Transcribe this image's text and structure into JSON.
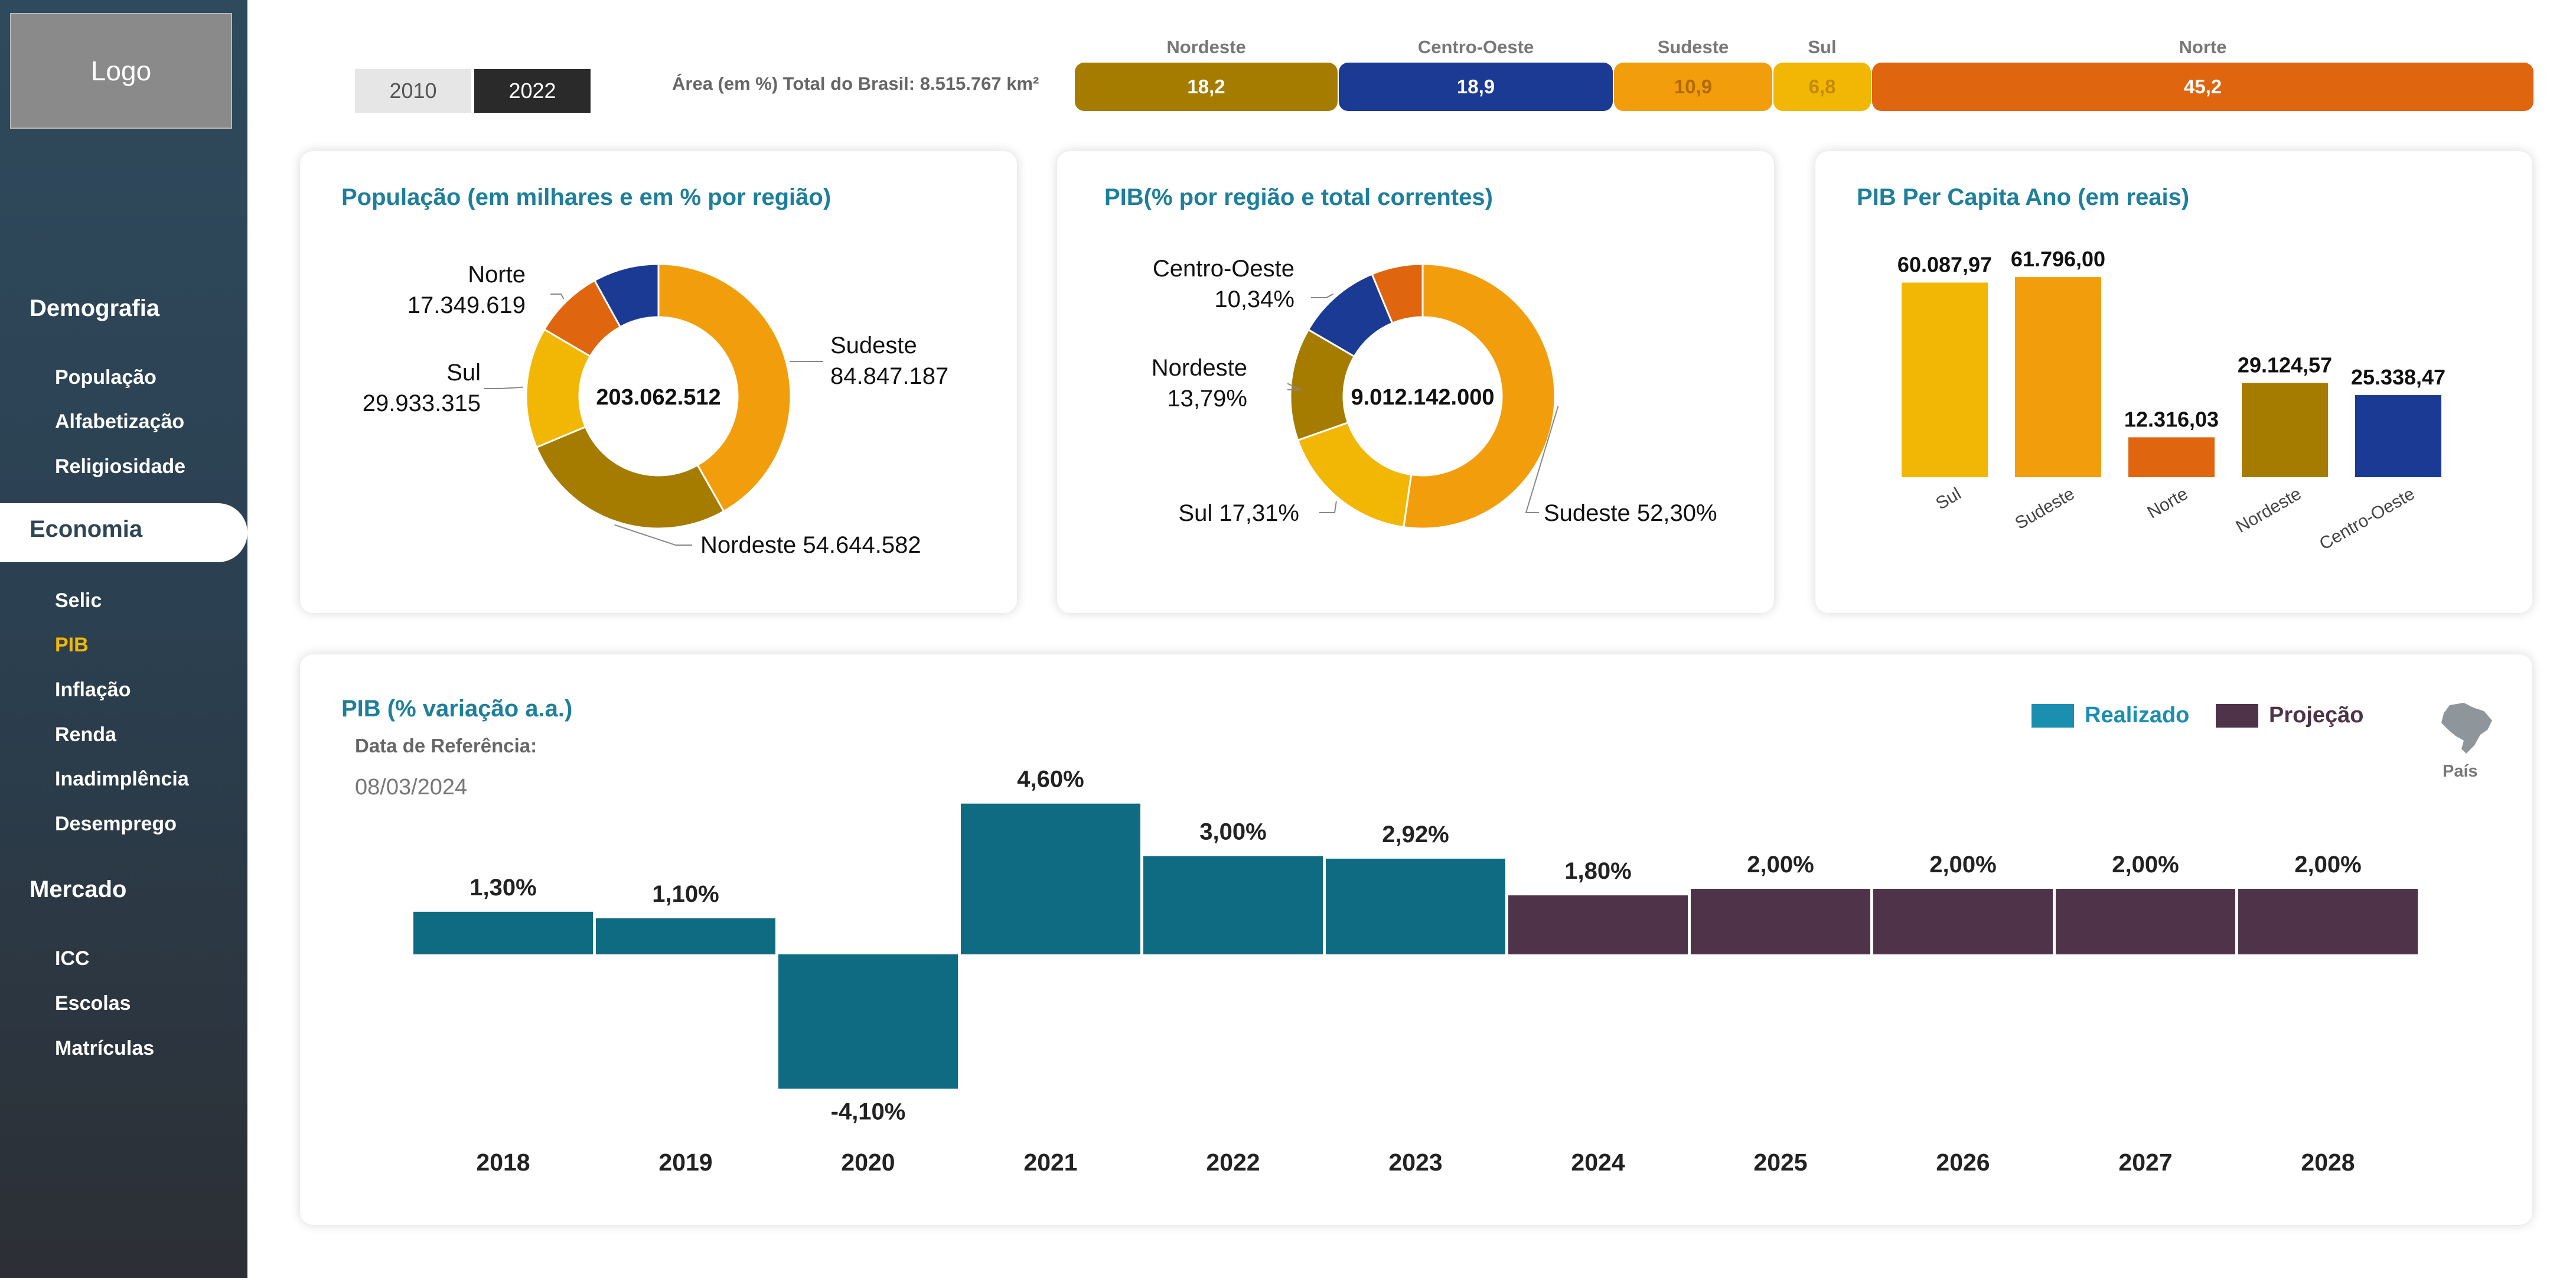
{
  "logo": "Logo",
  "sidebar": {
    "sections": [
      {
        "title": "Demografia",
        "items": [
          "População",
          "Alfabetização",
          "Religiosidade"
        ]
      },
      {
        "title": "Economia",
        "items": [
          "Selic",
          "PIB",
          "Inflação",
          "Renda",
          "Inadimplência",
          "Desemprego"
        ]
      },
      {
        "title": "Mercado",
        "items": [
          "ICC",
          "Escolas",
          "Matrículas"
        ]
      }
    ],
    "active_section": "Economia",
    "active_item": "PIB"
  },
  "years": [
    "2010",
    "2022"
  ],
  "selected_year": "2022",
  "area": {
    "label": "Área (em %) Total do Brasil: 8.515.767 km²",
    "regions": [
      {
        "name": "Nordeste",
        "value": "18,2"
      },
      {
        "name": "Centro-Oeste",
        "value": "18,9"
      },
      {
        "name": "Sudeste",
        "value": "10,9"
      },
      {
        "name": "Sul",
        "value": "6,8"
      },
      {
        "name": "Norte",
        "value": "45,2"
      }
    ]
  },
  "colors": {
    "nordeste": "#a57c00",
    "centro_oeste": "#1b3a93",
    "sudeste": "#f29e0c",
    "sul": "#f2b705",
    "norte": "#e0650f",
    "realizado": "#0f6b82",
    "projecao": "#4e3349"
  },
  "cards": {
    "populacao_title": "População (em milhares e em % por região)",
    "pib_regiao_title": "PIB(% por região e total correntes)",
    "pib_per_capita_title": "PIB Per Capita Ano (em reais)",
    "pib_variacao_title": "PIB (% variação a.a.)"
  },
  "legend": {
    "realizado": "Realizado",
    "projecao": "Projeção"
  },
  "map_label": "País",
  "ref_date_label": "Data de Referência:",
  "ref_date": "08/03/2024",
  "chart_data": [
    {
      "type": "pie",
      "title": "População (em milhares e em % por região)",
      "center_label": "203.062.512",
      "slices": [
        {
          "name": "Sudeste",
          "value": 84847187,
          "label": "84.847.187"
        },
        {
          "name": "Nordeste",
          "value": 54644582,
          "label": "54.644.582"
        },
        {
          "name": "Sul",
          "value": 29933315,
          "label": "29.933.315"
        },
        {
          "name": "Norte",
          "value": 17349619,
          "label": "17.349.619"
        },
        {
          "name": "Centro-Oeste",
          "value": 16287809,
          "label": ""
        }
      ]
    },
    {
      "type": "pie",
      "title": "PIB(% por região e total correntes)",
      "center_label": "9.012.142.000",
      "slices": [
        {
          "name": "Sudeste",
          "value": 52.3,
          "label": "52,30%"
        },
        {
          "name": "Sul",
          "value": 17.31,
          "label": "17,31%"
        },
        {
          "name": "Nordeste",
          "value": 13.79,
          "label": "13,79%"
        },
        {
          "name": "Centro-Oeste",
          "value": 10.34,
          "label": "10,34%"
        },
        {
          "name": "Norte",
          "value": 6.26,
          "label": ""
        }
      ]
    },
    {
      "type": "bar",
      "title": "PIB Per Capita Ano (em reais)",
      "categories": [
        "Sul",
        "Sudeste",
        "Norte",
        "Nordeste",
        "Centro-Oeste"
      ],
      "values": [
        60087.97,
        61796.0,
        12316.03,
        29124.57,
        25338.47
      ],
      "labels": [
        "60.087,97",
        "61.796,00",
        "12.316,03",
        "29.124,57",
        "25.338,47"
      ]
    },
    {
      "type": "bar",
      "title": "PIB (% variação a.a.)",
      "categories": [
        "2018",
        "2019",
        "2020",
        "2021",
        "2022",
        "2023",
        "2024",
        "2025",
        "2026",
        "2027",
        "2028"
      ],
      "values": [
        1.3,
        1.1,
        -4.1,
        4.6,
        3.0,
        2.92,
        1.8,
        2.0,
        2.0,
        2.0,
        2.0
      ],
      "labels": [
        "1,30%",
        "1,10%",
        "-4,10%",
        "4,60%",
        "3,00%",
        "2,92%",
        "1,80%",
        "2,00%",
        "2,00%",
        "2,00%",
        "2,00%"
      ],
      "series_type": [
        "Realizado",
        "Realizado",
        "Realizado",
        "Realizado",
        "Realizado",
        "Realizado",
        "Projeção",
        "Projeção",
        "Projeção",
        "Projeção",
        "Projeção"
      ]
    }
  ]
}
